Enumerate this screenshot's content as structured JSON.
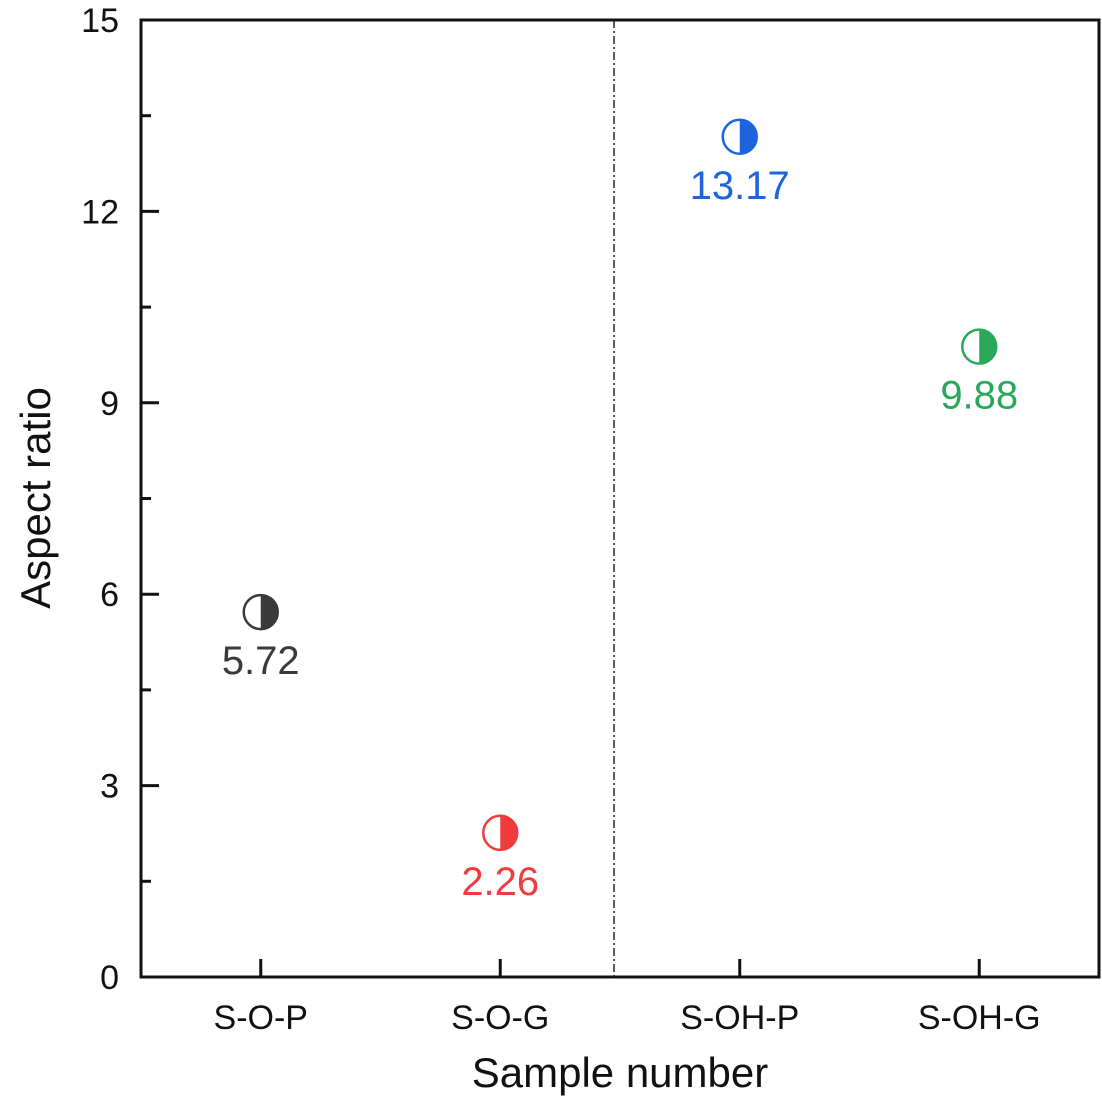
{
  "chart_data": {
    "type": "scatter",
    "title": "",
    "xlabel": "Sample number",
    "ylabel": "Aspect ratio",
    "ylim": [
      0,
      15
    ],
    "yticks": [
      0,
      3,
      6,
      9,
      12,
      15
    ],
    "yminor_step": 1.5,
    "grid": false,
    "legend": "none",
    "categories": [
      "S-O-P",
      "S-O-G",
      "S-OH-P",
      "S-OH-G"
    ],
    "divider_between": [
      "S-O-G",
      "S-OH-P"
    ],
    "marker": "half-filled-circle-right",
    "series": [
      {
        "name": "S-O-P",
        "category": "S-O-P",
        "value": 5.72,
        "label": "5.72",
        "color": "#3a3a3a"
      },
      {
        "name": "S-O-G",
        "category": "S-O-G",
        "value": 2.26,
        "label": "2.26",
        "color": "#f03c3c"
      },
      {
        "name": "S-OH-P",
        "category": "S-OH-P",
        "value": 13.17,
        "label": "13.17",
        "color": "#1e64dc"
      },
      {
        "name": "S-OH-G",
        "category": "S-OH-G",
        "value": 9.88,
        "label": "9.88",
        "color": "#28a85a"
      }
    ]
  }
}
